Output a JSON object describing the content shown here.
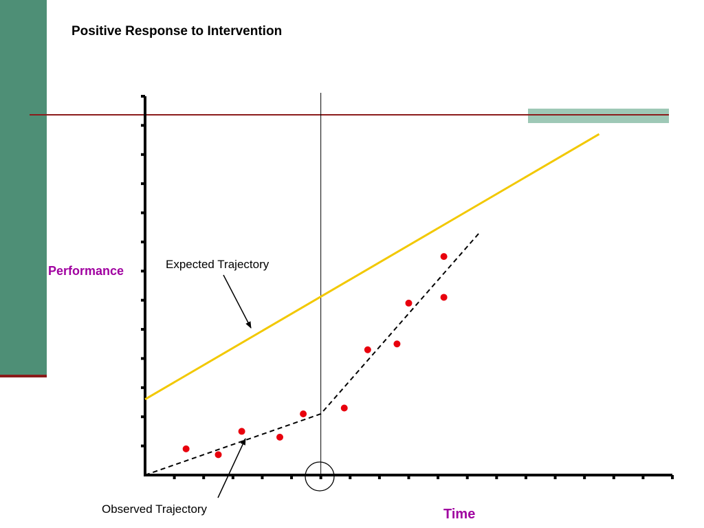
{
  "slide": {
    "title": "Positive Response to Intervention"
  },
  "colors": {
    "left_bar": "#4e8f76",
    "benchmark_line": "#8b1a1a",
    "expected_line": "#f2c800",
    "data_points": "#e8000d",
    "observed_line": "#000000",
    "axis_labels": "#a000a0"
  },
  "chart_data": {
    "type": "line",
    "title": "",
    "xlabel": "Time",
    "ylabel": "Performance",
    "xlim": [
      0,
      18
    ],
    "ylim": [
      0,
      13
    ],
    "grid": false,
    "benchmark": 12.6,
    "intervention_x": 6,
    "expected_trajectory": {
      "label": "Expected Trajectory",
      "x": [
        0,
        15.5
      ],
      "y": [
        2.6,
        11.7
      ]
    },
    "observed_trajectory": {
      "label": "Observed Trajectory",
      "x": [
        0,
        6,
        11.4
      ],
      "y": [
        0,
        2.1,
        8.3
      ]
    },
    "points": {
      "x": [
        1.4,
        2.5,
        3.3,
        4.6,
        5.4,
        6.8,
        7.6,
        8.6,
        9.0,
        10.2,
        10.2
      ],
      "y": [
        0.9,
        0.7,
        1.5,
        1.3,
        2.1,
        2.3,
        4.3,
        4.5,
        5.9,
        6.1,
        7.5
      ]
    }
  }
}
